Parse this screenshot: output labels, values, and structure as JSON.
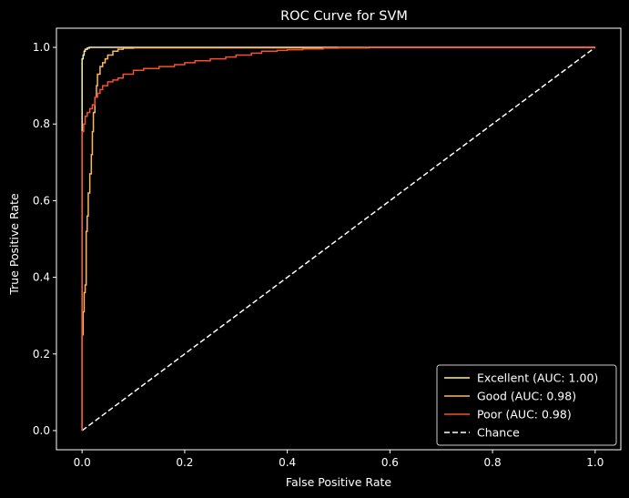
{
  "chart_data": {
    "type": "line",
    "title": "ROC Curve for SVM",
    "xlabel": "False Positive Rate",
    "ylabel": "True Positive Rate",
    "xlim": [
      -0.05,
      1.05
    ],
    "ylim": [
      -0.05,
      1.05
    ],
    "xticks": [
      "0.0",
      "0.2",
      "0.4",
      "0.6",
      "0.8",
      "1.0"
    ],
    "yticks": [
      "0.0",
      "0.2",
      "0.4",
      "0.6",
      "0.8",
      "1.0"
    ],
    "grid": false,
    "legend_position": "bottom-right",
    "series": [
      {
        "name": "Excellent (AUC: 1.00)",
        "color": "#fff0a8",
        "dash": false,
        "x": [
          0.0,
          0.0,
          0.002,
          0.002,
          0.004,
          0.004,
          0.006,
          0.006,
          0.01,
          0.01,
          0.014,
          0.014,
          1.0
        ],
        "y": [
          0.0,
          0.97,
          0.97,
          0.98,
          0.98,
          0.99,
          0.99,
          0.995,
          0.995,
          0.998,
          0.998,
          1.0,
          1.0
        ]
      },
      {
        "name": "Good (AUC: 0.98)",
        "color": "#fdb863",
        "dash": false,
        "x": [
          0.0,
          0.0,
          0.002,
          0.002,
          0.004,
          0.004,
          0.006,
          0.006,
          0.008,
          0.008,
          0.01,
          0.01,
          0.012,
          0.012,
          0.015,
          0.015,
          0.018,
          0.018,
          0.02,
          0.02,
          0.022,
          0.022,
          0.025,
          0.025,
          0.028,
          0.028,
          0.03,
          0.03,
          0.035,
          0.035,
          0.04,
          0.04,
          0.045,
          0.045,
          0.05,
          0.05,
          0.06,
          0.06,
          0.07,
          0.07,
          0.08,
          0.08,
          0.1,
          0.1,
          0.56,
          0.56,
          1.0
        ],
        "y": [
          0.0,
          0.25,
          0.25,
          0.31,
          0.31,
          0.36,
          0.36,
          0.38,
          0.38,
          0.52,
          0.52,
          0.56,
          0.56,
          0.62,
          0.62,
          0.67,
          0.67,
          0.72,
          0.72,
          0.78,
          0.78,
          0.83,
          0.83,
          0.87,
          0.87,
          0.9,
          0.9,
          0.93,
          0.93,
          0.95,
          0.95,
          0.96,
          0.96,
          0.97,
          0.97,
          0.98,
          0.98,
          0.99,
          0.99,
          0.995,
          0.995,
          0.998,
          0.998,
          0.999,
          0.999,
          1.0,
          1.0
        ]
      },
      {
        "name": "Poor (AUC: 0.98)",
        "color": "#f4512c",
        "dash": false,
        "x": [
          0.0,
          0.0,
          0.003,
          0.003,
          0.006,
          0.006,
          0.01,
          0.01,
          0.015,
          0.015,
          0.02,
          0.02,
          0.025,
          0.025,
          0.03,
          0.03,
          0.035,
          0.035,
          0.04,
          0.04,
          0.05,
          0.05,
          0.06,
          0.06,
          0.07,
          0.07,
          0.08,
          0.08,
          0.1,
          0.1,
          0.12,
          0.12,
          0.15,
          0.15,
          0.18,
          0.18,
          0.2,
          0.2,
          0.22,
          0.22,
          0.25,
          0.25,
          0.28,
          0.28,
          0.3,
          0.3,
          0.33,
          0.33,
          0.35,
          0.35,
          0.38,
          0.38,
          0.4,
          0.4,
          0.43,
          0.43,
          0.47,
          0.47,
          0.5,
          0.5,
          0.55,
          0.55,
          1.0
        ],
        "y": [
          0.0,
          0.78,
          0.78,
          0.8,
          0.8,
          0.82,
          0.82,
          0.83,
          0.83,
          0.84,
          0.84,
          0.85,
          0.85,
          0.87,
          0.87,
          0.88,
          0.88,
          0.89,
          0.89,
          0.9,
          0.9,
          0.91,
          0.91,
          0.915,
          0.915,
          0.92,
          0.92,
          0.93,
          0.93,
          0.94,
          0.94,
          0.945,
          0.945,
          0.95,
          0.95,
          0.955,
          0.955,
          0.96,
          0.96,
          0.965,
          0.965,
          0.97,
          0.97,
          0.975,
          0.975,
          0.98,
          0.98,
          0.985,
          0.985,
          0.99,
          0.99,
          0.992,
          0.992,
          0.994,
          0.994,
          0.996,
          0.996,
          0.998,
          0.998,
          0.999,
          0.999,
          1.0,
          1.0
        ]
      },
      {
        "name": "Chance",
        "color": "#ffffff",
        "dash": true,
        "x": [
          0.0,
          1.0
        ],
        "y": [
          0.0,
          1.0
        ]
      }
    ]
  }
}
